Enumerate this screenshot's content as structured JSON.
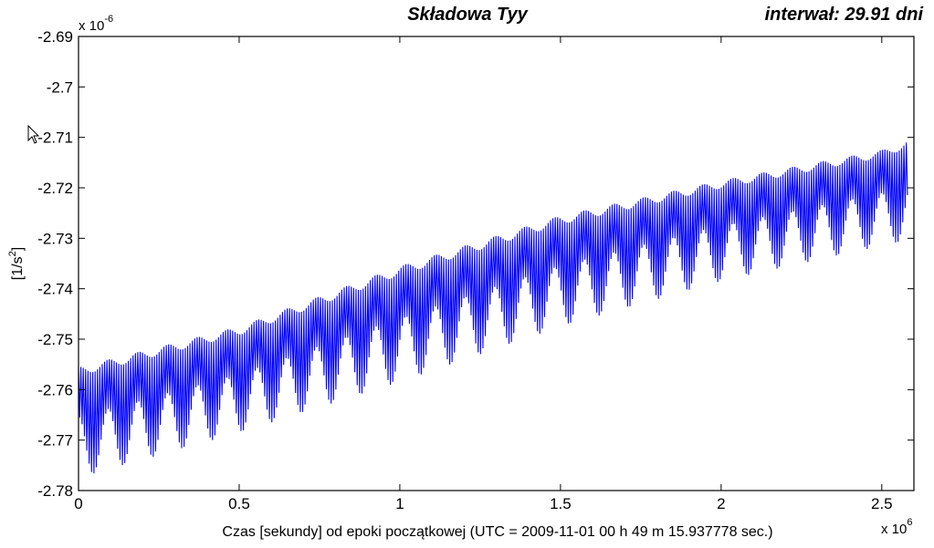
{
  "chart_data": {
    "type": "line",
    "title": "Składowa Tyy",
    "interval_label": "interwał: 29.91 dni",
    "xlabel": "Czas [sekundy] od epoki początkowej (UTC = 2009-11-01 00 h 49 m 15.937778 sec.)",
    "ylabel_base": "[1/s",
    "ylabel_sup": "2",
    "ylabel_close": "]",
    "x_exponent_base": "x 10",
    "x_exponent_power": "6",
    "y_exponent_base": "x 10",
    "y_exponent_power": "-6",
    "x_ticks": [
      "0",
      "0.5",
      "1",
      "1.5",
      "2",
      "2.5"
    ],
    "y_ticks": [
      "-2.69",
      "-2.7",
      "-2.71",
      "-2.72",
      "-2.73",
      "-2.74",
      "-2.75",
      "-2.76",
      "-2.77",
      "-2.78"
    ],
    "xlim": [
      0,
      2.6
    ],
    "ylim": [
      -2.78,
      -2.69
    ],
    "x_unit_scale": "1e6 s",
    "y_unit_scale": "1e-6 1/s^2",
    "series": [
      {
        "color": "#0000ff",
        "upper_envelope": {
          "x": [
            0,
            0.5,
            1.0,
            1.5,
            2.0,
            2.5,
            2.58
          ],
          "y": [
            -2.7555,
            -2.7475,
            -2.7355,
            -2.7255,
            -2.7185,
            -2.7125,
            -2.7105
          ]
        },
        "lower_envelope": {
          "x": [
            0,
            0.5,
            1.0,
            1.5,
            2.0,
            2.5,
            2.58
          ],
          "y": [
            -2.7775,
            -2.7685,
            -2.7585,
            -2.7475,
            -2.7385,
            -2.7315,
            -2.7305
          ]
        },
        "oscillation_period": 0.0926,
        "sample_count": 700
      }
    ],
    "grid": false
  }
}
